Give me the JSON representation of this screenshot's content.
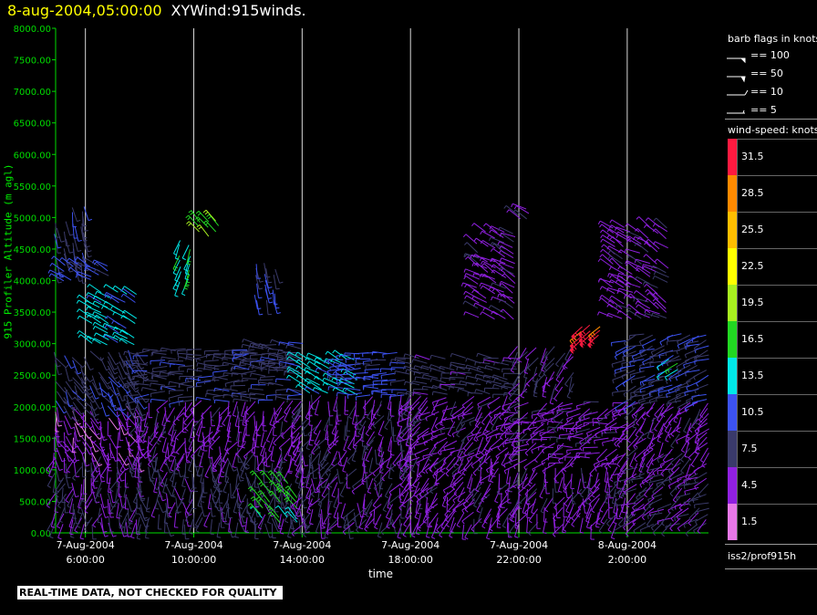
{
  "title": {
    "date": "8-aug-2004,05:00:00",
    "name": "XYWind:915winds."
  },
  "footer": "REAL-TIME DATA, NOT CHECKED FOR QUALITY",
  "legend": {
    "flags_title": "barb flags in knots",
    "flags": [
      "== 100",
      "== 50",
      "== 10",
      "== 5"
    ],
    "color_title": "wind-speed: knots",
    "color_scale": [
      {
        "value": "31.5",
        "color": "#ff1a40"
      },
      {
        "value": "28.5",
        "color": "#ff8a00"
      },
      {
        "value": "25.5",
        "color": "#ffbe00"
      },
      {
        "value": "22.5",
        "color": "#ffff00"
      },
      {
        "value": "19.5",
        "color": "#a8f020"
      },
      {
        "value": "16.5",
        "color": "#22d822"
      },
      {
        "value": "13.5",
        "color": "#00e8e8"
      },
      {
        "value": "10.5",
        "color": "#3c52f0"
      },
      {
        "value": "7.5",
        "color": "#3a3a6a"
      },
      {
        "value": "4.5",
        "color": "#9020e0"
      },
      {
        "value": "1.5",
        "color": "#e878e8"
      }
    ],
    "source": "iss2/prof915h"
  },
  "chart_data": {
    "type": "wind-barb",
    "ylabel": "915 Profiler Altitude (m agl)",
    "xlabel": "time",
    "ylim": [
      0,
      8000
    ],
    "y_ticks": [
      "0.00",
      "500.00",
      "1000.00",
      "1500.00",
      "2000.00",
      "2500.00",
      "3000.00",
      "3500.00",
      "4000.00",
      "4500.00",
      "5000.00",
      "5500.00",
      "6000.00",
      "6500.00",
      "7000.00",
      "7500.00",
      "8000.00"
    ],
    "x_ticks": [
      {
        "date": "7-Aug-2004",
        "time": "6:00:00"
      },
      {
        "date": "7-Aug-2004",
        "time": "10:00:00"
      },
      {
        "date": "7-Aug-2004",
        "time": "14:00:00"
      },
      {
        "date": "7-Aug-2004",
        "time": "18:00:00"
      },
      {
        "date": "7-Aug-2004",
        "time": "22:00:00"
      },
      {
        "date": "8-Aug-2004",
        "time": "2:00:00"
      }
    ],
    "xlim_hours": [
      4.9,
      29.0
    ],
    "grid": "vertical",
    "groups": [
      {
        "t": [
          4.9,
          8.0
        ],
        "z": [
          150,
          1200
        ],
        "speed": 6,
        "dir": 190,
        "var": 60
      },
      {
        "t": [
          4.9,
          8.0
        ],
        "z": [
          1200,
          2000
        ],
        "speed": 4,
        "dir": 160,
        "var": 50
      },
      {
        "t": [
          4.9,
          8.0
        ],
        "z": [
          2000,
          2900
        ],
        "speed": 8,
        "dir": 150,
        "var": 40
      },
      {
        "t": [
          4.9,
          6.2
        ],
        "z": [
          4200,
          5200
        ],
        "speed": 8,
        "dir": 170,
        "var": 20
      },
      {
        "t": [
          5.2,
          6.9
        ],
        "z": [
          4000,
          4300
        ],
        "speed": 10,
        "dir": 300,
        "var": 20
      },
      {
        "t": [
          6.2,
          8.0
        ],
        "z": [
          3000,
          3800
        ],
        "speed": 13,
        "dir": 300,
        "var": 15
      },
      {
        "t": [
          8.0,
          14.0
        ],
        "z": [
          150,
          1200
        ],
        "speed": 7,
        "dir": 180,
        "var": 60
      },
      {
        "t": [
          8.0,
          14.0
        ],
        "z": [
          1200,
          2100
        ],
        "speed": 5,
        "dir": 200,
        "var": 60
      },
      {
        "t": [
          8.0,
          14.0
        ],
        "z": [
          2100,
          2900
        ],
        "speed": 8,
        "dir": 270,
        "var": 30
      },
      {
        "t": [
          9.5,
          10.0
        ],
        "z": [
          4000,
          4700
        ],
        "speed": 14,
        "dir": 200,
        "var": 15
      },
      {
        "t": [
          10.2,
          11.0
        ],
        "z": [
          4700,
          5000
        ],
        "speed": 17,
        "dir": 320,
        "var": 10
      },
      {
        "t": [
          12.3,
          13.0
        ],
        "z": [
          3700,
          4300
        ],
        "speed": 10,
        "dir": 170,
        "var": 20
      },
      {
        "t": [
          12.0,
          14.0
        ],
        "z": [
          2600,
          3000
        ],
        "speed": 8,
        "dir": 280,
        "var": 30
      },
      {
        "t": [
          12.5,
          14.0
        ],
        "z": [
          150,
          800
        ],
        "speed": 16,
        "dir": 320,
        "var": 10
      },
      {
        "t": [
          14.0,
          16.0
        ],
        "z": [
          2200,
          2800
        ],
        "speed": 13,
        "dir": 300,
        "var": 15
      },
      {
        "t": [
          14.0,
          18.0
        ],
        "z": [
          150,
          1300
        ],
        "speed": 6,
        "dir": 200,
        "var": 70
      },
      {
        "t": [
          14.0,
          18.0
        ],
        "z": [
          1300,
          2200
        ],
        "speed": 6,
        "dir": 200,
        "var": 60
      },
      {
        "t": [
          15.5,
          18.0
        ],
        "z": [
          2200,
          2900
        ],
        "speed": 10,
        "dir": 270,
        "var": 20
      },
      {
        "t": [
          18.0,
          22.0
        ],
        "z": [
          150,
          1200
        ],
        "speed": 5,
        "dir": 210,
        "var": 60
      },
      {
        "t": [
          18.0,
          22.0
        ],
        "z": [
          1200,
          2200
        ],
        "speed": 5,
        "dir": 230,
        "var": 60
      },
      {
        "t": [
          18.0,
          22.0
        ],
        "z": [
          2200,
          2800
        ],
        "speed": 7,
        "dir": 280,
        "var": 20
      },
      {
        "t": [
          20.5,
          22.0
        ],
        "z": [
          3400,
          4800
        ],
        "speed": 5,
        "dir": 300,
        "var": 30
      },
      {
        "t": [
          22.0,
          22.5
        ],
        "z": [
          4900,
          5200
        ],
        "speed": 5,
        "dir": 300,
        "var": 20
      },
      {
        "t": [
          22.0,
          26.0
        ],
        "z": [
          150,
          1100
        ],
        "speed": 5,
        "dir": 200,
        "var": 60
      },
      {
        "t": [
          22.0,
          26.0
        ],
        "z": [
          1100,
          2100
        ],
        "speed": 5,
        "dir": 250,
        "var": 60
      },
      {
        "t": [
          22.0,
          24.0
        ],
        "z": [
          2300,
          3000
        ],
        "speed": 6,
        "dir": 210,
        "var": 40
      },
      {
        "t": [
          24.3,
          25.0
        ],
        "z": [
          3050,
          3300
        ],
        "speed": 31,
        "dir": 230,
        "var": 5
      },
      {
        "t": [
          26.0,
          29.0
        ],
        "z": [
          150,
          1100
        ],
        "speed": 6,
        "dir": 240,
        "var": 50
      },
      {
        "t": [
          26.0,
          29.0
        ],
        "z": [
          1100,
          2100
        ],
        "speed": 5,
        "dir": 220,
        "var": 50
      },
      {
        "t": [
          26.0,
          29.0
        ],
        "z": [
          2100,
          3200
        ],
        "speed": 9,
        "dir": 250,
        "var": 30
      },
      {
        "t": [
          25.5,
          27.5
        ],
        "z": [
          3400,
          4900
        ],
        "speed": 5,
        "dir": 300,
        "var": 30
      },
      {
        "t": [
          27.5,
          28.0
        ],
        "z": [
          2600,
          2800
        ],
        "speed": 14,
        "dir": 240,
        "var": 10
      }
    ]
  }
}
